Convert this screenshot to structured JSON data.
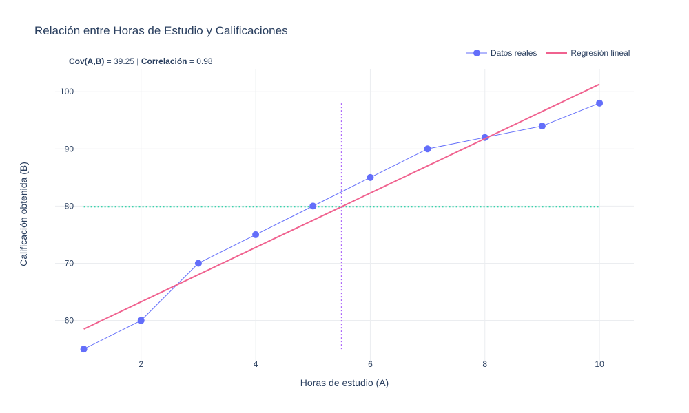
{
  "chart_data": {
    "type": "line",
    "title": "Relación entre Horas de Estudio y Calificaciones",
    "xlabel": "Horas de estudio (A)",
    "ylabel": "Calificación obtenida (B)",
    "xlim": [
      0.5,
      10.6
    ],
    "ylim": [
      52,
      104
    ],
    "xticks": [
      2,
      4,
      6,
      8,
      10
    ],
    "yticks": [
      60,
      70,
      80,
      90,
      100
    ],
    "grid": true,
    "legend_position": "top-right",
    "annotation": {
      "cov_label": "Cov(A,B)",
      "cov_value": " = 39.25 | ",
      "corr_label": "Correlación",
      "corr_value": " = 0.98"
    },
    "series": [
      {
        "name": "Datos reales",
        "kind": "line+markers",
        "color": "#636efa",
        "x": [
          1,
          2,
          3,
          4,
          5,
          6,
          7,
          8,
          9,
          10
        ],
        "y": [
          55,
          60,
          70,
          75,
          80,
          85,
          90,
          92,
          94,
          98
        ]
      },
      {
        "name": "Regresión lineal",
        "kind": "line",
        "color": "#f0628f",
        "x": [
          1,
          10
        ],
        "y": [
          58.5,
          101.3
        ]
      }
    ],
    "reference_lines": [
      {
        "kind": "horizontal",
        "y": 79.9,
        "x_range": [
          1,
          10
        ],
        "color": "#00cc96",
        "dash": "dotted"
      },
      {
        "kind": "vertical",
        "x": 5.5,
        "y_range": [
          55,
          98
        ],
        "color": "#ab63fa",
        "dash": "dotted"
      }
    ]
  }
}
